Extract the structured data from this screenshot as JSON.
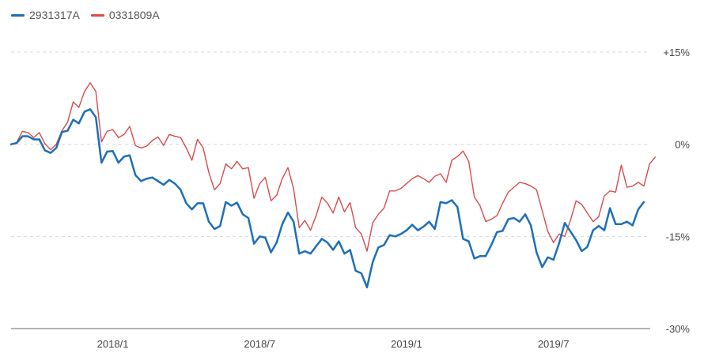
{
  "chart_data": {
    "type": "line",
    "title": "",
    "xlabel": "",
    "ylabel": "",
    "ylim": [
      -30,
      15
    ],
    "grid": true,
    "legend_position": "top-left",
    "y_ticks": [
      {
        "value": 15,
        "label": "+15%"
      },
      {
        "value": 0,
        "label": "0%"
      },
      {
        "value": -15,
        "label": "-15%"
      },
      {
        "value": -30,
        "label": "-30%"
      }
    ],
    "x_ticks": [
      {
        "index": 18,
        "label": "2018/1"
      },
      {
        "index": 44,
        "label": "2018/7"
      },
      {
        "index": 70,
        "label": "2019/1"
      },
      {
        "index": 96,
        "label": "2019/7"
      }
    ],
    "series": [
      {
        "name": "2931317A",
        "color": "#1d6fb8",
        "values": [
          0,
          0.2,
          1.3,
          1.3,
          0.8,
          0.8,
          -1,
          -1.4,
          -0.6,
          2,
          2.2,
          4,
          3.4,
          5.3,
          5.7,
          4.4,
          -3,
          -1.2,
          -1.1,
          -3,
          -2,
          -1.8,
          -5,
          -6,
          -5.6,
          -5.4,
          -6,
          -6.6,
          -5.8,
          -6.4,
          -7.4,
          -9.6,
          -10.6,
          -9.6,
          -9.6,
          -12.6,
          -13.8,
          -13.3,
          -9.4,
          -10,
          -9.5,
          -11.4,
          -12,
          -16.2,
          -15,
          -15.2,
          -17.6,
          -16,
          -13,
          -11.1,
          -12.6,
          -17.8,
          -17.4,
          -17.8,
          -16.6,
          -15.4,
          -16,
          -17.2,
          -15.8,
          -17.8,
          -17.2,
          -20.6,
          -21,
          -23.3,
          -19.2,
          -16.8,
          -16.4,
          -14.8,
          -15,
          -14.6,
          -14,
          -13.1,
          -14,
          -13.4,
          -12.6,
          -13.8,
          -9.4,
          -9.6,
          -9.1,
          -10.2,
          -15.4,
          -15.8,
          -18.6,
          -18.2,
          -18.2,
          -16.4,
          -14.3,
          -14.1,
          -12.2,
          -12,
          -12.6,
          -11.4,
          -13.2,
          -17.6,
          -20,
          -18.4,
          -18.8,
          -16.1,
          -12.8,
          -14.2,
          -15.6,
          -17.4,
          -16.7,
          -14,
          -13.3,
          -14,
          -10.4,
          -13,
          -13,
          -12.6,
          -13.2,
          -10.6,
          -9.4
        ]
      },
      {
        "name": "0331809A",
        "color": "#d94b4b",
        "values": [
          0,
          0.3,
          2.1,
          1.9,
          1.1,
          1.9,
          0.1,
          -0.9,
          0,
          2.2,
          3.6,
          6.9,
          6,
          8.6,
          10,
          8.6,
          0.4,
          2.1,
          2.4,
          1.1,
          1.6,
          2.9,
          -0.2,
          -0.6,
          -0.3,
          0.6,
          1.2,
          -0.2,
          1.6,
          1.3,
          1.1,
          -0.6,
          -2.6,
          0.8,
          -0.6,
          -4.6,
          -7.4,
          -6.4,
          -3.2,
          -4,
          -2.8,
          -4,
          -3.8,
          -8.8,
          -6.4,
          -5.4,
          -9.2,
          -8.3,
          -5.6,
          -3.8,
          -7.2,
          -13.6,
          -12.4,
          -14,
          -11.6,
          -8.6,
          -9.6,
          -11.2,
          -8.6,
          -11,
          -9.5,
          -13.6,
          -14.6,
          -17.4,
          -12.8,
          -11.4,
          -10.4,
          -7.6,
          -7.6,
          -7.2,
          -6.4,
          -5.6,
          -5.1,
          -5.6,
          -6.2,
          -5.2,
          -4.8,
          -6.2,
          -2.6,
          -2,
          -1.1,
          -2.8,
          -8.6,
          -10,
          -12.6,
          -12.2,
          -11.6,
          -9.6,
          -7.8,
          -7,
          -6.2,
          -6.4,
          -6.8,
          -7.4,
          -10.8,
          -14.2,
          -16,
          -14.6,
          -15,
          -12.4,
          -9.2,
          -9.8,
          -11.2,
          -12.6,
          -11.8,
          -8.4,
          -7.6,
          -7.8,
          -3.4,
          -7,
          -6.8,
          -6.2,
          -6.8,
          -3.2,
          -2.1
        ]
      }
    ]
  }
}
